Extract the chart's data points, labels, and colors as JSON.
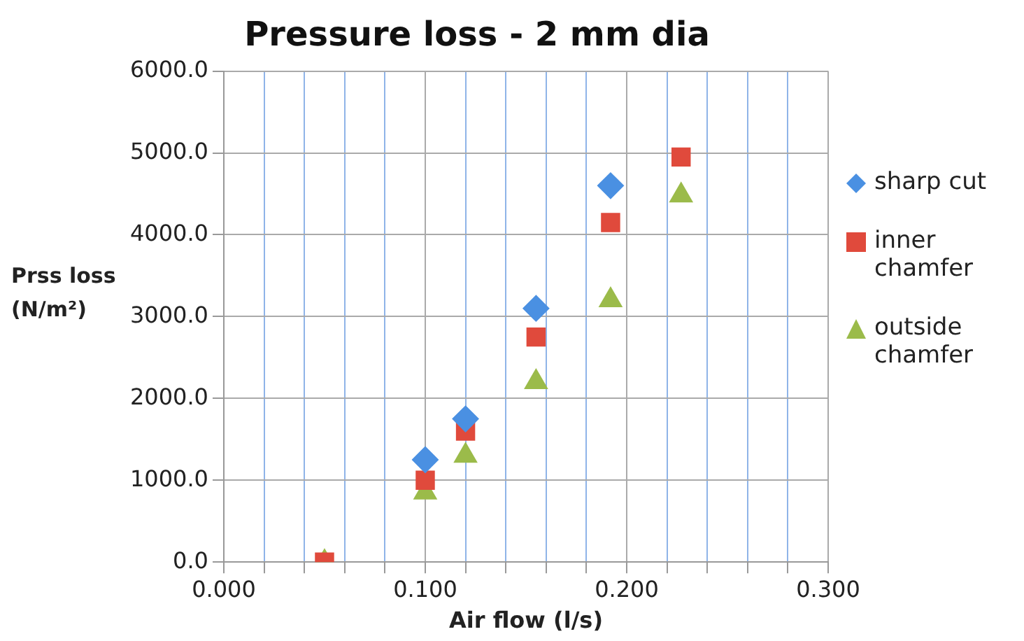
{
  "chart_data": {
    "type": "scatter",
    "title": "Pressure loss - 2 mm dia",
    "xlabel": "Air flow (l/s)",
    "ylabel": "Prss loss (N/m²)",
    "x": [
      0.05,
      0.1,
      0.12,
      0.155,
      0.192,
      0.227
    ],
    "series": [
      {
        "name": "sharp cut",
        "color": "#4a90e2",
        "marker": "diamond",
        "values": [
          null,
          1250,
          1750,
          3100,
          4600,
          null
        ]
      },
      {
        "name": "inner chamfer",
        "color": "#e04a3c",
        "marker": "square",
        "values": [
          0,
          1000,
          1600,
          2750,
          4150,
          4950
        ]
      },
      {
        "name": "outside chamfer",
        "color": "#9bbb4a",
        "marker": "triangle",
        "values": [
          0,
          850,
          1300,
          2200,
          3200,
          4480
        ]
      }
    ],
    "xlim": [
      0,
      0.3
    ],
    "xticks": [
      {
        "value": 0,
        "label": "0.000"
      },
      {
        "value": 0.02,
        "label": null
      },
      {
        "value": 0.04,
        "label": null
      },
      {
        "value": 0.06,
        "label": null
      },
      {
        "value": 0.08,
        "label": null
      },
      {
        "value": 0.1,
        "label": "0.100"
      },
      {
        "value": 0.12,
        "label": null
      },
      {
        "value": 0.14,
        "label": null
      },
      {
        "value": 0.16,
        "label": null
      },
      {
        "value": 0.18,
        "label": null
      },
      {
        "value": 0.2,
        "label": "0.200"
      },
      {
        "value": 0.22,
        "label": null
      },
      {
        "value": 0.24,
        "label": null
      },
      {
        "value": 0.26,
        "label": null
      },
      {
        "value": 0.28,
        "label": null
      },
      {
        "value": 0.3,
        "label": "0.300"
      }
    ],
    "ylim": [
      0,
      6000
    ],
    "yticks": [
      {
        "value": 0,
        "label": "0.0"
      },
      {
        "value": 1000,
        "label": "1000.0"
      },
      {
        "value": 2000,
        "label": "2000.0"
      },
      {
        "value": 3000,
        "label": "3000.0"
      },
      {
        "value": 4000,
        "label": "4000.0"
      },
      {
        "value": 5000,
        "label": "5000.0"
      },
      {
        "value": 6000,
        "label": "6000.0"
      }
    ],
    "grid": true,
    "legend": "right"
  }
}
